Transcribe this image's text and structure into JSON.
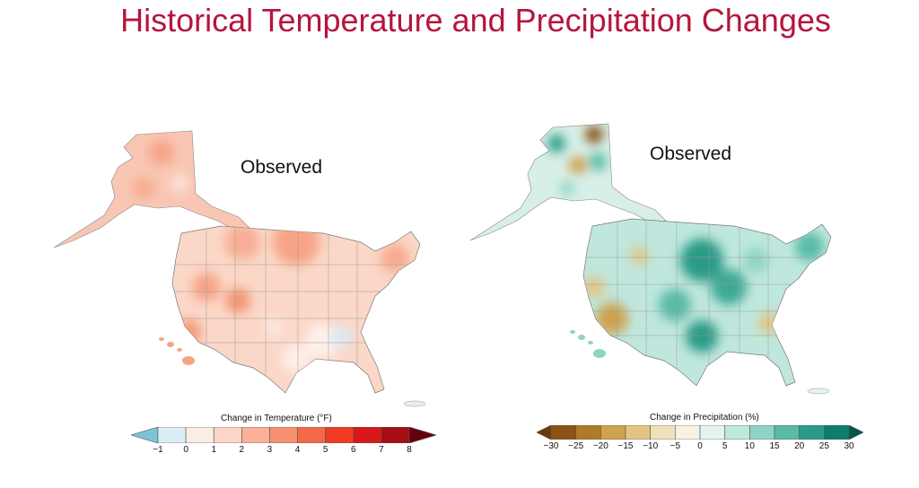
{
  "title": "Historical Temperature and Precipitation Changes",
  "panels": [
    {
      "id": "temperature",
      "label": "Observed",
      "legend": {
        "title": "Change in Temperature (°F)",
        "ticks": [
          "−1",
          "0",
          "1",
          "2",
          "3",
          "4",
          "5",
          "6",
          "7",
          "8"
        ],
        "colors": [
          "#7fc3d8",
          "#dceef5",
          "#fbece6",
          "#fbd5c5",
          "#f9b19a",
          "#f6906f",
          "#f36a48",
          "#ef3b23",
          "#d7191c",
          "#a50f15",
          "#67000d"
        ]
      }
    },
    {
      "id": "precipitation",
      "label": "Observed",
      "legend": {
        "title": "Change in Precipitation (%)",
        "ticks": [
          "−30",
          "−25",
          "−20",
          "−15",
          "−10",
          "−5",
          "0",
          "5",
          "10",
          "15",
          "20",
          "25",
          "30"
        ],
        "colors": [
          "#6b3a0a",
          "#8c5314",
          "#b07a2b",
          "#cfa24f",
          "#e2c584",
          "#f1e1bb",
          "#f8f2e3",
          "#e3f3ef",
          "#bfe7dd",
          "#8fd4c3",
          "#58bba6",
          "#2b9b87",
          "#0f7d6b",
          "#00574a"
        ]
      }
    }
  ]
}
